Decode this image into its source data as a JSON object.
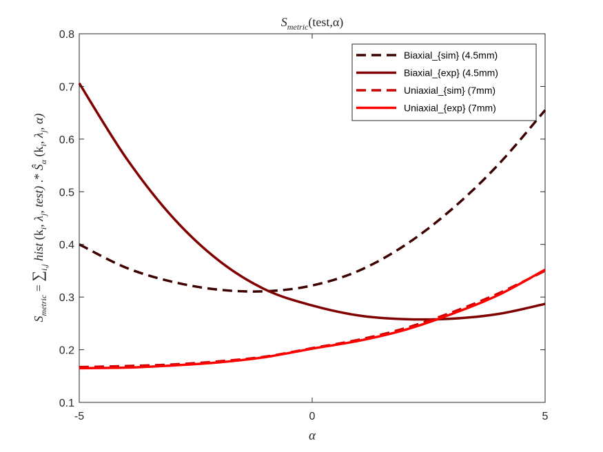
{
  "chart_data": {
    "type": "line",
    "title": "S_metric(test,α)",
    "title_parts": {
      "base": "S",
      "sub": "metric",
      "rest": "(test,α)"
    },
    "xlabel": "α",
    "ylabel": "S_metric = Σ_{i,j} hist^(k_i, λ_j, test) .* Ŝ_α (k_i, λ_j, α)",
    "ylabel_parts": {
      "s": "S",
      "s_sub": "metric",
      "eq": " = ",
      "sum": "∑",
      "sum_sub": "i,j",
      "hist": " hist",
      "hist_args": " (k",
      "hist_i": "i",
      "hist_mid": ", λ",
      "hist_j": "j",
      "hist_end": ", test)",
      "op": "  .*  ",
      "shat": "Ŝ",
      "shat_sub": "α",
      "args": " (k",
      "args_i": "i",
      "args_mid": ", λ",
      "args_j": "j",
      "args_end": ", α)"
    },
    "xlim": [
      -5,
      5
    ],
    "ylim": [
      0.1,
      0.8
    ],
    "xticks": [
      -5,
      0,
      5
    ],
    "xtick_labels": [
      "-5",
      "0",
      "5"
    ],
    "yticks": [
      0.1,
      0.2,
      0.3,
      0.4,
      0.5,
      0.6,
      0.7,
      0.8
    ],
    "ytick_labels": [
      "0.1",
      "0.2",
      "0.3",
      "0.4",
      "0.5",
      "0.6",
      "0.7",
      "0.8"
    ],
    "grid": false,
    "legend_position": "top-right",
    "x": [
      -5,
      -4,
      -3,
      -2,
      -1,
      0,
      1,
      2,
      3,
      4,
      5
    ],
    "series": [
      {
        "name": "Biaxial_{sim} (4.5mm)",
        "color": "#3d0000",
        "dash": "dashed",
        "values": [
          0.4,
          0.356,
          0.329,
          0.314,
          0.311,
          0.322,
          0.35,
          0.399,
          0.467,
          0.552,
          0.655
        ]
      },
      {
        "name": "Biaxial_{exp} (4.5mm)",
        "color": "#800000",
        "dash": "solid",
        "values": [
          0.706,
          0.565,
          0.452,
          0.369,
          0.314,
          0.284,
          0.265,
          0.258,
          0.259,
          0.268,
          0.287
        ]
      },
      {
        "name": "Uniaxial_{sim} (7mm)",
        "color": "#cc0000",
        "dash": "dashed",
        "values": [
          0.167,
          0.169,
          0.172,
          0.178,
          0.187,
          0.203,
          0.219,
          0.241,
          0.271,
          0.307,
          0.35
        ]
      },
      {
        "name": "Uniaxial_{exp} (7mm)",
        "color": "#ff0000",
        "dash": "solid",
        "values": [
          0.165,
          0.166,
          0.17,
          0.176,
          0.186,
          0.202,
          0.217,
          0.238,
          0.268,
          0.304,
          0.352
        ]
      }
    ]
  }
}
